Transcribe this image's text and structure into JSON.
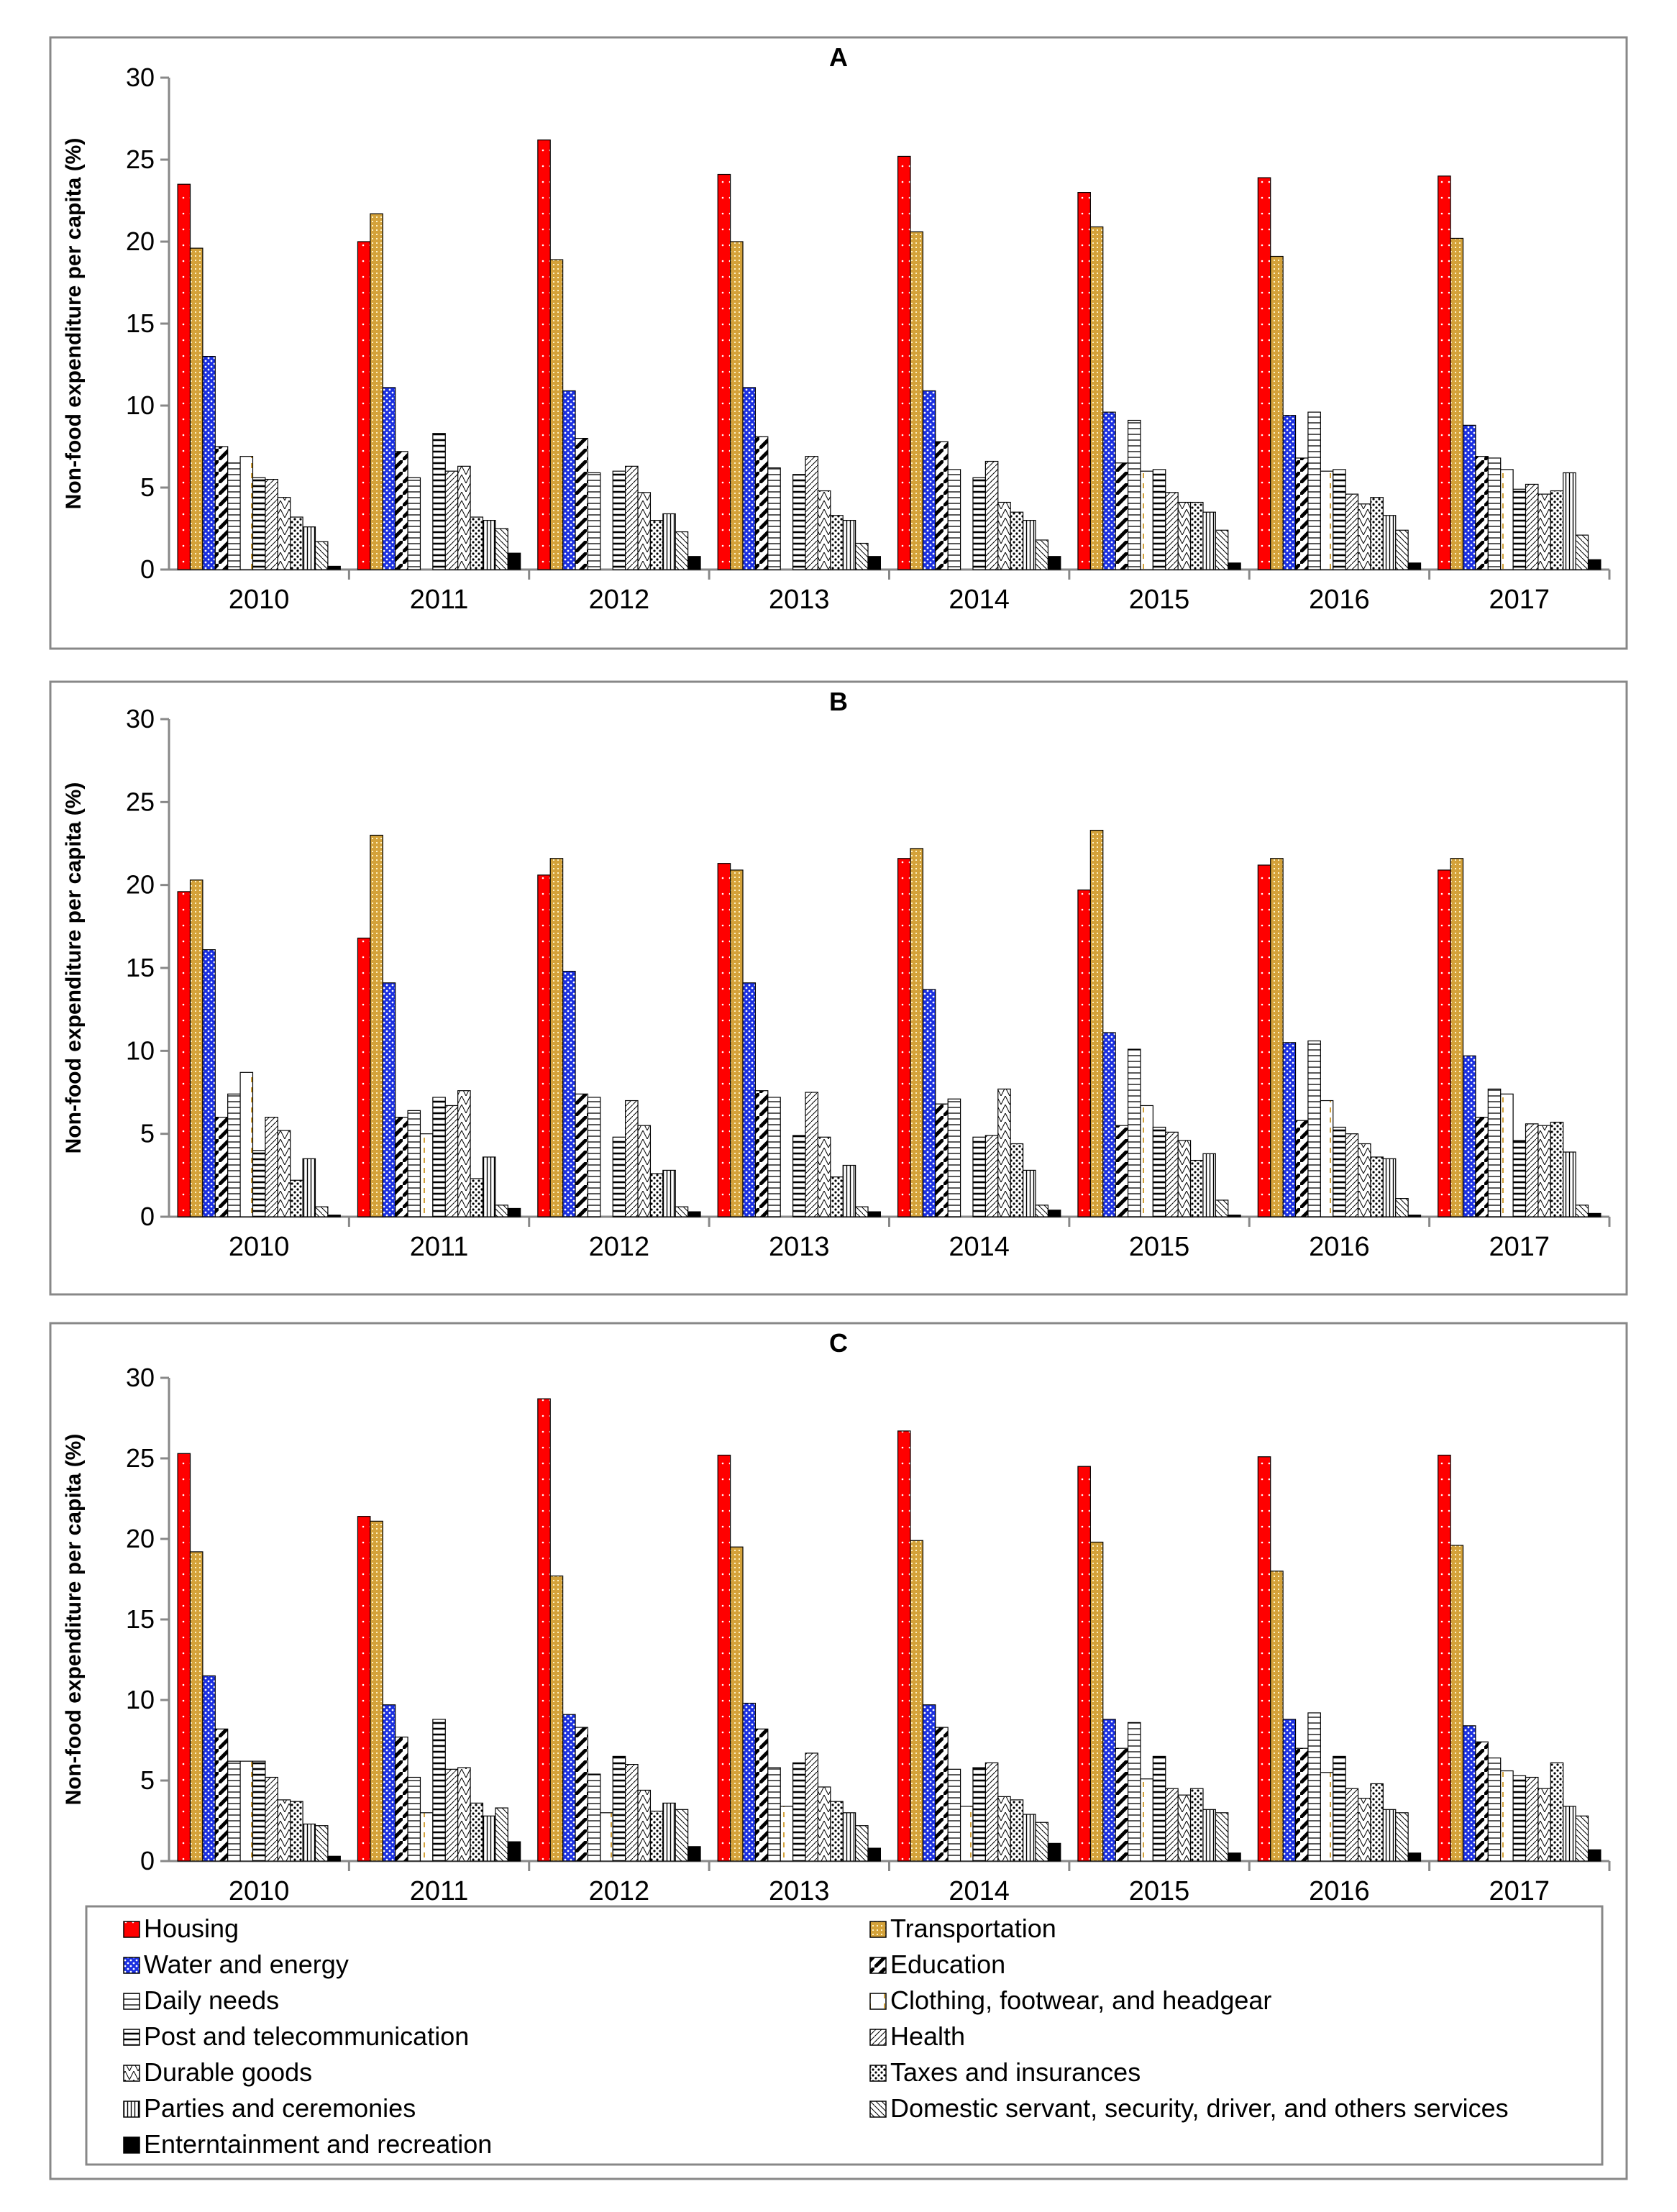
{
  "chart_data": [
    {
      "type": "bar",
      "title": "A",
      "ylabel": "Non-food expenditure per capita (%)",
      "ylim": [
        0,
        30
      ],
      "yticks": [
        0,
        5,
        10,
        15,
        20,
        25,
        30
      ],
      "categories": [
        "2010",
        "2011",
        "2012",
        "2013",
        "2014",
        "2015",
        "2016",
        "2017"
      ],
      "series": [
        {
          "name": "Housing",
          "values": [
            23.5,
            20.0,
            26.2,
            24.1,
            25.2,
            23.0,
            23.9,
            24.0
          ]
        },
        {
          "name": "Transportation",
          "values": [
            19.6,
            21.7,
            18.9,
            20.0,
            20.6,
            20.9,
            19.1,
            20.2
          ]
        },
        {
          "name": "Water and energy",
          "values": [
            13.0,
            11.1,
            10.9,
            11.1,
            10.9,
            9.6,
            9.4,
            8.8
          ]
        },
        {
          "name": "Education",
          "values": [
            7.5,
            7.2,
            8.0,
            8.1,
            7.8,
            6.5,
            6.8,
            6.9
          ]
        },
        {
          "name": "Daily needs",
          "values": [
            6.5,
            5.6,
            5.9,
            6.2,
            6.1,
            9.1,
            9.6,
            6.8
          ]
        },
        {
          "name": "Clothing, footwear, and headgear",
          "values": [
            6.9,
            0.0,
            0.0,
            0.0,
            0.0,
            6.0,
            6.0,
            6.1
          ]
        },
        {
          "name": "Post and telecommunication",
          "values": [
            5.6,
            8.3,
            6.0,
            5.8,
            5.6,
            6.1,
            6.1,
            4.9
          ]
        },
        {
          "name": "Health",
          "values": [
            5.5,
            6.0,
            6.3,
            6.9,
            6.6,
            4.7,
            4.6,
            5.2
          ]
        },
        {
          "name": "Durable goods",
          "values": [
            4.4,
            6.3,
            4.7,
            4.8,
            4.1,
            4.1,
            4.0,
            4.6
          ]
        },
        {
          "name": "Taxes and insurances",
          "values": [
            3.2,
            3.2,
            3.0,
            3.3,
            3.5,
            4.1,
            4.4,
            4.8
          ]
        },
        {
          "name": "Parties and ceremonies",
          "values": [
            2.6,
            3.0,
            3.4,
            3.0,
            3.0,
            3.5,
            3.3,
            5.9
          ]
        },
        {
          "name": "Domestic servant, security, driver, and others services",
          "values": [
            1.7,
            2.5,
            2.3,
            1.6,
            1.8,
            2.4,
            2.4,
            2.1
          ]
        },
        {
          "name": "Enterntainment and recreation",
          "values": [
            0.2,
            1.0,
            0.8,
            0.8,
            0.8,
            0.4,
            0.4,
            0.6
          ]
        }
      ]
    },
    {
      "type": "bar",
      "title": "B",
      "ylabel": "Non-food expenditure per capita (%)",
      "ylim": [
        0,
        30
      ],
      "yticks": [
        0,
        5,
        10,
        15,
        20,
        25,
        30
      ],
      "categories": [
        "2010",
        "2011",
        "2012",
        "2013",
        "2014",
        "2015",
        "2016",
        "2017"
      ],
      "series": [
        {
          "name": "Housing",
          "values": [
            19.6,
            16.8,
            20.6,
            21.3,
            21.6,
            19.7,
            21.2,
            20.9
          ]
        },
        {
          "name": "Transportation",
          "values": [
            20.3,
            23.0,
            21.6,
            20.9,
            22.2,
            23.3,
            21.6,
            21.6
          ]
        },
        {
          "name": "Water and energy",
          "values": [
            16.1,
            14.1,
            14.8,
            14.1,
            13.7,
            11.1,
            10.5,
            9.7
          ]
        },
        {
          "name": "Education",
          "values": [
            6.0,
            6.0,
            7.4,
            7.6,
            6.8,
            5.5,
            5.8,
            6.0
          ]
        },
        {
          "name": "Daily needs",
          "values": [
            7.4,
            6.4,
            7.2,
            7.2,
            7.1,
            10.1,
            10.6,
            7.7
          ]
        },
        {
          "name": "Clothing, footwear, and headgear",
          "values": [
            8.7,
            5.0,
            0.0,
            0.0,
            0.0,
            6.7,
            7.0,
            7.4
          ]
        },
        {
          "name": "Post and telecommunication",
          "values": [
            4.0,
            7.2,
            4.8,
            4.9,
            4.8,
            5.4,
            5.4,
            4.6
          ]
        },
        {
          "name": "Health",
          "values": [
            6.0,
            6.7,
            7.0,
            7.5,
            4.9,
            5.1,
            5.0,
            5.6
          ]
        },
        {
          "name": "Durable goods",
          "values": [
            5.2,
            7.6,
            5.5,
            4.8,
            7.7,
            4.6,
            4.4,
            5.5
          ]
        },
        {
          "name": "Taxes and insurances",
          "values": [
            2.2,
            2.3,
            2.6,
            2.4,
            4.4,
            3.4,
            3.6,
            5.7
          ]
        },
        {
          "name": "Parties and ceremonies",
          "values": [
            3.5,
            3.6,
            2.8,
            3.1,
            2.8,
            3.8,
            3.5,
            3.9
          ]
        },
        {
          "name": "Domestic servant, security, driver, and others services",
          "values": [
            0.6,
            0.7,
            0.6,
            0.6,
            0.7,
            1.0,
            1.1,
            0.7
          ]
        },
        {
          "name": "Enterntainment and recreation",
          "values": [
            0.1,
            0.5,
            0.3,
            0.3,
            0.4,
            0.1,
            0.1,
            0.2
          ]
        }
      ]
    },
    {
      "type": "bar",
      "title": "C",
      "ylabel": "Non-food expenditure per capita (%)",
      "ylim": [
        0,
        30
      ],
      "yticks": [
        0,
        5,
        10,
        15,
        20,
        25,
        30
      ],
      "categories": [
        "2010",
        "2011",
        "2012",
        "2013",
        "2014",
        "2015",
        "2016",
        "2017"
      ],
      "series": [
        {
          "name": "Housing",
          "values": [
            25.3,
            21.4,
            28.7,
            25.2,
            26.7,
            24.5,
            25.1,
            25.2
          ]
        },
        {
          "name": "Transportation",
          "values": [
            19.2,
            21.1,
            17.7,
            19.5,
            19.9,
            19.8,
            18.0,
            19.6
          ]
        },
        {
          "name": "Water and energy",
          "values": [
            11.5,
            9.7,
            9.1,
            9.8,
            9.7,
            8.8,
            8.8,
            8.4
          ]
        },
        {
          "name": "Education",
          "values": [
            8.2,
            7.7,
            8.3,
            8.2,
            8.3,
            7.0,
            7.0,
            7.4
          ]
        },
        {
          "name": "Daily needs",
          "values": [
            6.2,
            5.2,
            5.4,
            5.8,
            5.7,
            8.6,
            9.2,
            6.4
          ]
        },
        {
          "name": "Clothing, footwear, and headgear",
          "values": [
            6.2,
            3.0,
            3.0,
            3.4,
            3.4,
            5.1,
            5.5,
            5.6
          ]
        },
        {
          "name": "Post and telecommunication",
          "values": [
            6.2,
            8.8,
            6.5,
            6.1,
            5.8,
            6.5,
            6.5,
            5.3
          ]
        },
        {
          "name": "Health",
          "values": [
            5.2,
            5.7,
            6.0,
            6.7,
            6.1,
            4.5,
            4.5,
            5.2
          ]
        },
        {
          "name": "Durable goods",
          "values": [
            3.8,
            5.8,
            4.4,
            4.6,
            4.0,
            4.1,
            3.9,
            4.5
          ]
        },
        {
          "name": "Taxes and insurances",
          "values": [
            3.7,
            3.6,
            3.1,
            3.7,
            3.8,
            4.5,
            4.8,
            6.1
          ]
        },
        {
          "name": "Parties and ceremonies",
          "values": [
            2.3,
            2.8,
            3.6,
            3.0,
            2.9,
            3.2,
            3.2,
            3.4
          ]
        },
        {
          "name": "Domestic servant, security, driver, and others services",
          "values": [
            2.2,
            3.3,
            3.2,
            2.2,
            2.4,
            3.0,
            3.0,
            2.8
          ]
        },
        {
          "name": "Enterntainment and recreation",
          "values": [
            0.3,
            1.2,
            0.9,
            0.8,
            1.1,
            0.5,
            0.5,
            0.7
          ]
        }
      ]
    }
  ],
  "legend": {
    "items": [
      {
        "label": "Housing",
        "pattern": "housing"
      },
      {
        "label": "Transportation",
        "pattern": "transport"
      },
      {
        "label": "Water and energy",
        "pattern": "water"
      },
      {
        "label": "Education",
        "pattern": "education"
      },
      {
        "label": "Daily needs",
        "pattern": "daily"
      },
      {
        "label": "Clothing, footwear, and headgear",
        "pattern": "clothing"
      },
      {
        "label": "Post and telecommunication",
        "pattern": "post"
      },
      {
        "label": "Health",
        "pattern": "health"
      },
      {
        "label": "Durable goods",
        "pattern": "durable"
      },
      {
        "label": "Taxes and insurances",
        "pattern": "taxes"
      },
      {
        "label": "Parties and ceremonies",
        "pattern": "parties"
      },
      {
        "label": "Domestic servant, security, driver, and others services",
        "pattern": "domestic"
      },
      {
        "label": "Enterntainment and recreation",
        "pattern": "entertain"
      }
    ]
  },
  "colors": {
    "housing": "#ff0000",
    "transportation": "#d4a23a",
    "water_and_energy": "#1a2fe0",
    "entertainment": "#000000"
  }
}
